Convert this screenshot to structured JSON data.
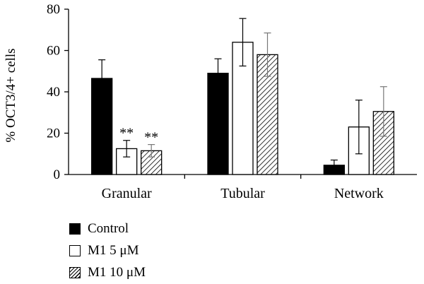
{
  "chart_data": {
    "type": "bar",
    "ylabel": "% OCT3/4+ cells",
    "xlabel": "",
    "title": "",
    "ylim": [
      0,
      80
    ],
    "yticks": [
      "0",
      "20",
      "40",
      "60",
      "80"
    ],
    "categories": [
      "Granular",
      "Tubular",
      "Network"
    ],
    "series": [
      {
        "name": "Control",
        "values": [
          46.5,
          49,
          4.5
        ],
        "errors": [
          9,
          7,
          2.5
        ],
        "fill": "solid"
      },
      {
        "name": "M1 5 μM",
        "values": [
          12.5,
          64,
          23
        ],
        "errors": [
          4,
          11.5,
          13
        ],
        "fill": "white"
      },
      {
        "name": "M1 10 μM",
        "values": [
          11.5,
          58,
          30.5
        ],
        "errors": [
          3,
          10.5,
          12
        ],
        "fill": "hatch"
      }
    ],
    "annotations": [
      {
        "category": "Granular",
        "series": "M1 5 μM",
        "text": "**"
      },
      {
        "category": "Granular",
        "series": "M1 10 μM",
        "text": "**"
      }
    ],
    "grid": false,
    "legend": "bottom-left",
    "colors": {
      "bar_fill_solid": "#000000",
      "bar_fill_white": "#ffffff",
      "stroke": "#000000",
      "hatch_error": "#777777"
    }
  }
}
